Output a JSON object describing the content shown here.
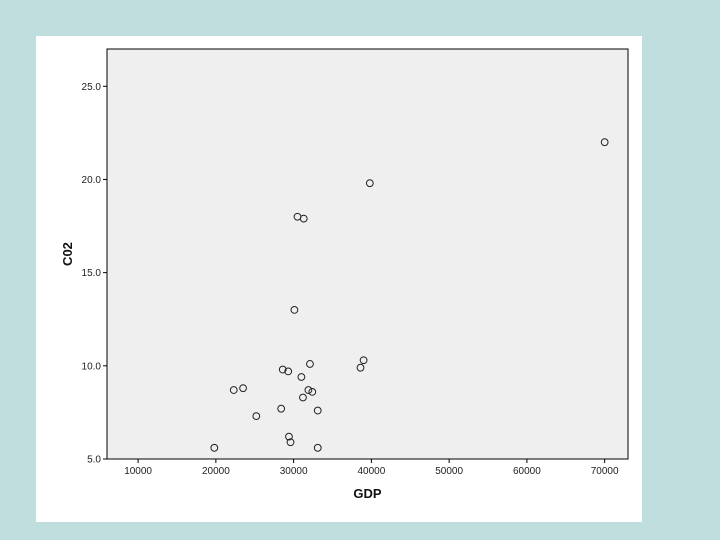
{
  "chart_data": {
    "type": "scatter",
    "title": "",
    "xlabel": "GDP",
    "ylabel": "C02",
    "xlim": [
      6000,
      73000
    ],
    "ylim": [
      5.0,
      27.0
    ],
    "x_ticks": [
      10000,
      20000,
      30000,
      40000,
      50000,
      60000,
      70000
    ],
    "x_tick_labels": [
      "10000",
      "20000",
      "30000",
      "40000",
      "50000",
      "60000",
      "70000"
    ],
    "y_ticks": [
      5.0,
      10.0,
      15.0,
      20.0,
      25.0
    ],
    "y_tick_labels": [
      "5.0",
      "10.0",
      "15.0",
      "20.0",
      "25.0"
    ],
    "grid": false,
    "colors": {
      "plot_background": "#efefef",
      "marker_stroke": "#222222",
      "slide_background": "#c0dede"
    },
    "points": [
      {
        "x": 70000,
        "y": 22.0
      },
      {
        "x": 39800,
        "y": 19.8
      },
      {
        "x": 30500,
        "y": 18.0
      },
      {
        "x": 31300,
        "y": 17.9
      },
      {
        "x": 30100,
        "y": 13.0
      },
      {
        "x": 39000,
        "y": 10.3
      },
      {
        "x": 32100,
        "y": 10.1
      },
      {
        "x": 38600,
        "y": 9.9
      },
      {
        "x": 28600,
        "y": 9.8
      },
      {
        "x": 29300,
        "y": 9.7
      },
      {
        "x": 31000,
        "y": 9.4
      },
      {
        "x": 23500,
        "y": 8.8
      },
      {
        "x": 22300,
        "y": 8.7
      },
      {
        "x": 31900,
        "y": 8.7
      },
      {
        "x": 32400,
        "y": 8.6
      },
      {
        "x": 31200,
        "y": 8.3
      },
      {
        "x": 28400,
        "y": 7.7
      },
      {
        "x": 33100,
        "y": 7.6
      },
      {
        "x": 25200,
        "y": 7.3
      },
      {
        "x": 29400,
        "y": 6.2
      },
      {
        "x": 29600,
        "y": 5.9
      },
      {
        "x": 19800,
        "y": 5.6
      },
      {
        "x": 33100,
        "y": 5.6
      }
    ]
  }
}
